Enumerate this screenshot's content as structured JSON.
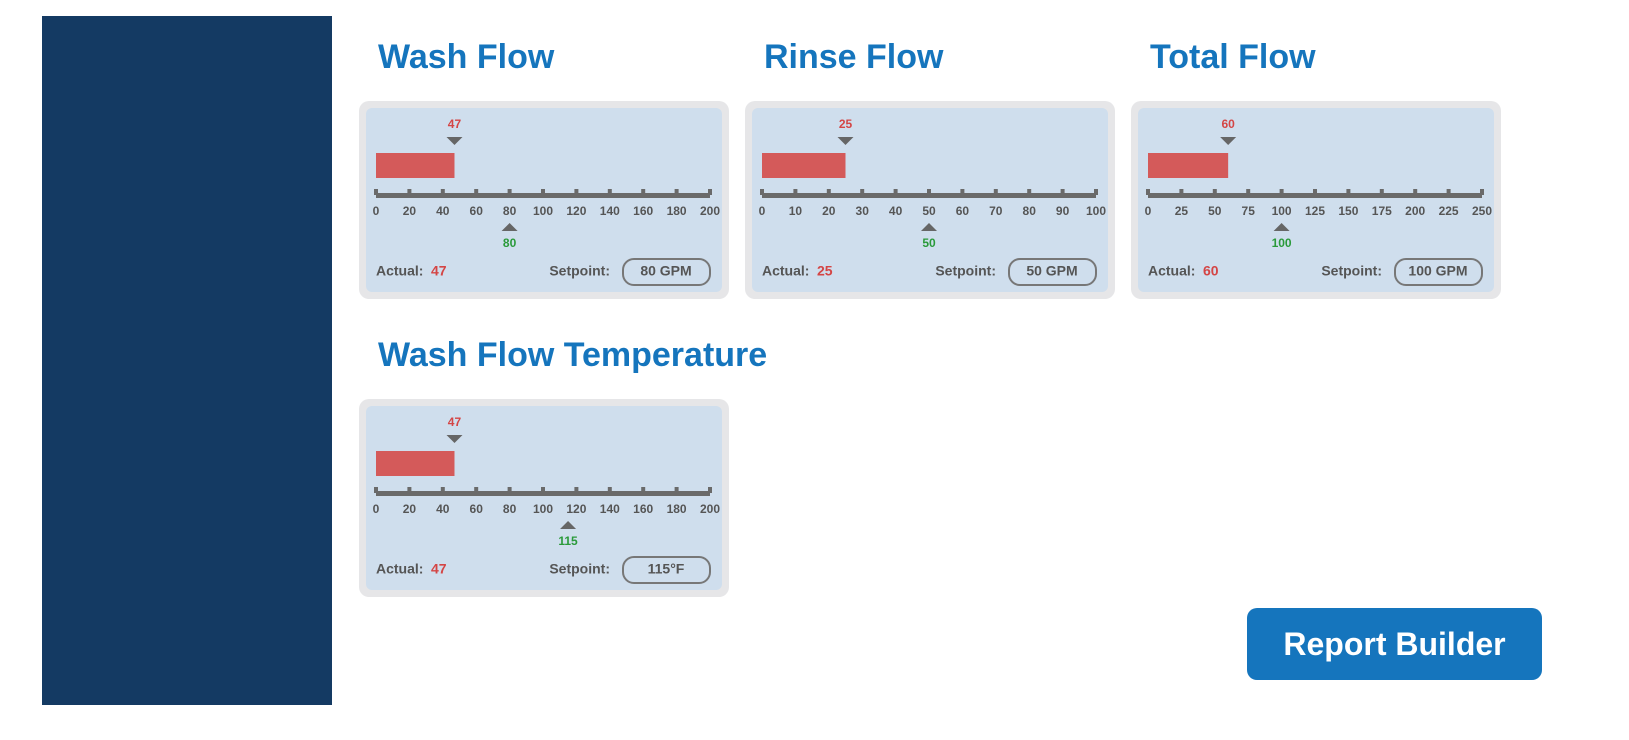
{
  "panels": [
    {
      "title": "Wash Flow",
      "gauge": {
        "xlim": [
          0,
          200
        ],
        "xticks": [
          0,
          20,
          40,
          60,
          80,
          100,
          120,
          140,
          160,
          180,
          200
        ],
        "actual": 47,
        "setpoint": 80
      },
      "actual_label": "Actual:",
      "setpoint_label": "Setpoint:",
      "setpoint_display": "80 GPM"
    },
    {
      "title": "Rinse Flow",
      "gauge": {
        "xlim": [
          0,
          100
        ],
        "xticks": [
          0,
          10,
          20,
          30,
          40,
          50,
          60,
          70,
          80,
          90,
          100
        ],
        "actual": 25,
        "setpoint": 50
      },
      "actual_label": "Actual:",
      "setpoint_label": "Setpoint:",
      "setpoint_display": "50 GPM"
    },
    {
      "title": "Total Flow",
      "gauge": {
        "xlim": [
          0,
          250
        ],
        "xticks": [
          0,
          25,
          50,
          75,
          100,
          125,
          150,
          175,
          200,
          225,
          250
        ],
        "actual": 60,
        "setpoint": 100
      },
      "actual_label": "Actual:",
      "setpoint_label": "Setpoint:",
      "setpoint_display": "100 GPM"
    },
    {
      "title": "Wash Flow Temperature",
      "gauge": {
        "xlim": [
          0,
          200
        ],
        "xticks": [
          0,
          20,
          40,
          60,
          80,
          100,
          120,
          140,
          160,
          180,
          200
        ],
        "actual": 47,
        "setpoint": 115
      },
      "actual_label": "Actual:",
      "setpoint_label": "Setpoint:",
      "setpoint_display": "115°F"
    }
  ],
  "button": "Report Builder"
}
